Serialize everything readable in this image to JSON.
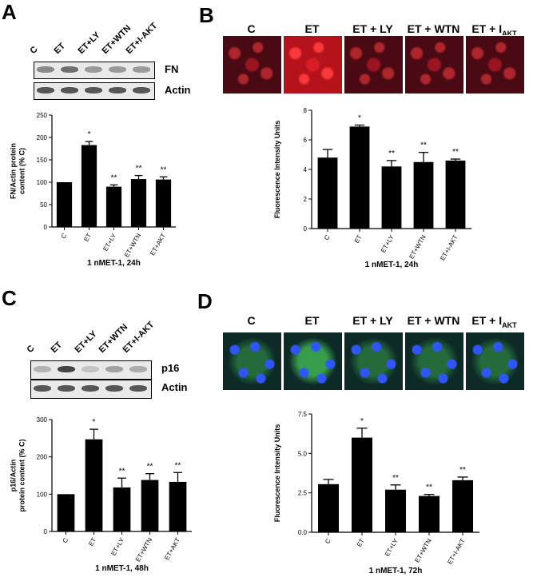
{
  "panels": {
    "A": {
      "letter": "A",
      "blot_lanes": [
        "C",
        "ET",
        "ET+LY",
        "ET+WTN",
        "ET+I-AKT"
      ],
      "blot_rows": [
        "FN",
        "Actin"
      ],
      "row_band_levels": [
        [
          0.55,
          0.7,
          0.45,
          0.45,
          0.45
        ],
        [
          0.85,
          0.85,
          0.85,
          0.85,
          0.85
        ]
      ]
    },
    "B": {
      "letter": "B",
      "micro_labels": [
        "C",
        "ET",
        "ET + LY",
        "ET + WTN",
        "ET + I"
      ],
      "micro_sub": "AKT",
      "micro_color": "#d01a24"
    },
    "C": {
      "letter": "C",
      "blot_lanes": [
        "C",
        "ET",
        "ET+LY",
        "ET+WTN",
        "ET+I-AKT"
      ],
      "blot_rows": [
        "p16",
        "Actin"
      ],
      "row_band_levels": [
        [
          0.3,
          0.95,
          0.2,
          0.4,
          0.35
        ],
        [
          0.85,
          0.85,
          0.85,
          0.85,
          0.85
        ]
      ]
    },
    "D": {
      "letter": "D",
      "micro_labels": [
        "C",
        "ET",
        "ET + LY",
        "ET + WTN",
        "ET + I"
      ],
      "micro_sub": "AKT",
      "micro_color": "#1d45d6"
    }
  },
  "chart_data": [
    {
      "id": "A",
      "type": "bar",
      "categories": [
        "C",
        "ET",
        "ET+LY",
        "ET+WTN",
        "ET+AKT"
      ],
      "values": [
        100,
        183,
        90,
        107,
        106
      ],
      "errors": [
        0,
        8,
        4,
        8,
        6
      ],
      "annotations": [
        "",
        "*",
        "**",
        "**",
        "**"
      ],
      "ylabel": "FN/Actin protein\ncontent (% C)",
      "xlabel": "1 nMET-1, 24h",
      "ylim": [
        0,
        250
      ],
      "yticks": [
        "0",
        "50",
        "100",
        "150",
        "200",
        "250"
      ]
    },
    {
      "id": "B",
      "type": "bar",
      "categories": [
        "C",
        "ET",
        "ET+LY",
        "ET+WTN",
        "ET+I-AKT"
      ],
      "values": [
        4.8,
        6.9,
        4.2,
        4.5,
        4.6
      ],
      "errors": [
        0.55,
        0.1,
        0.4,
        0.65,
        0.1
      ],
      "annotations": [
        "",
        "*",
        "**",
        "**",
        "**"
      ],
      "ylabel": "Fluorescence Intensity Units",
      "xlabel": "1 nMET-1, 24h",
      "ylim": [
        0,
        8
      ],
      "yticks": [
        "0",
        "2",
        "4",
        "6",
        "8"
      ]
    },
    {
      "id": "C",
      "type": "bar",
      "categories": [
        "C",
        "ET",
        "ET+LY",
        "ET+WTN",
        "ET+AKT"
      ],
      "values": [
        100,
        247,
        118,
        138,
        133
      ],
      "errors": [
        0,
        27,
        25,
        17,
        25
      ],
      "annotations": [
        "",
        "*",
        "**",
        "**",
        "**"
      ],
      "ylabel": "p16/Actin\nprotein content (% C)",
      "xlabel": "1 nMET-1, 48h",
      "ylim": [
        0,
        300
      ],
      "yticks": [
        "0",
        "100",
        "200",
        "300"
      ]
    },
    {
      "id": "D",
      "type": "bar",
      "categories": [
        "C",
        "ET",
        "ET+LY",
        "ET+WTN",
        "ET+I-AKT"
      ],
      "values": [
        3.05,
        6.0,
        2.7,
        2.3,
        3.3
      ],
      "errors": [
        0.3,
        0.6,
        0.3,
        0.1,
        0.2
      ],
      "annotations": [
        "",
        "*",
        "**",
        "**",
        "**"
      ],
      "ylabel": "Fluorescence Intensity Units",
      "xlabel": "1 nMET-1, 72h",
      "ylim": [
        0,
        7.5
      ],
      "yticks": [
        "0.0",
        "2.5",
        "5.0",
        "7.5"
      ]
    }
  ]
}
